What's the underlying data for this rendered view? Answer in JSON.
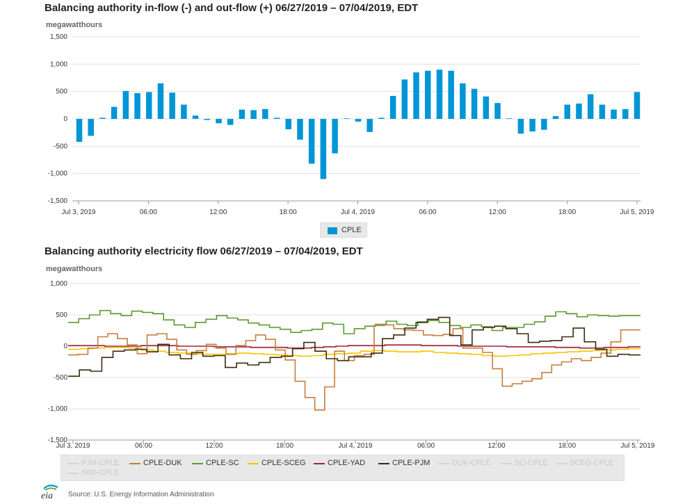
{
  "charts": {
    "top": {
      "title": "Balancing authority in-flow (-) and out-flow (+) 06/27/2019 – 07/04/2019, EDT",
      "unit": "megawatthours"
    },
    "bottom": {
      "title": "Balancing authority electricity flow 06/27/2019 – 07/04/2019, EDT",
      "unit": "megawatthours"
    }
  },
  "legend_top": {
    "label": "CPLE",
    "color": "#0096d6"
  },
  "legend_bottom": [
    {
      "label": "PJM-CPLE",
      "active": false
    },
    {
      "label": "CPLE-DUK",
      "active": true,
      "color": "#c87d3a"
    },
    {
      "label": "CPLE-SC",
      "active": true,
      "color": "#5b9a2e"
    },
    {
      "label": "CPLE-SCEG",
      "active": true,
      "color": "#f5c400"
    },
    {
      "label": "CPLE-YAD",
      "active": true,
      "color": "#a0243a"
    },
    {
      "label": "CPLE-PJM",
      "active": true,
      "color": "#3b2a0c"
    },
    {
      "label": "DUK-CPLE",
      "active": false
    },
    {
      "label": "SC-CPLE",
      "active": false
    },
    {
      "label": "SCEG-CPLE",
      "active": false
    },
    {
      "label": "YAD-CPLE",
      "active": false
    }
  ],
  "source": "Source: U.S. Energy Information Administration",
  "logo_text": "eia",
  "chart_data": [
    {
      "type": "bar",
      "title": "Balancing authority in-flow (-) and out-flow (+) 06/27/2019 – 07/04/2019, EDT",
      "ylabel": "megawatthours",
      "ylim": [
        -1500,
        1500
      ],
      "yticks": [
        "1,500",
        "1,000",
        "500",
        "0",
        "-500",
        "-1,000",
        "-1,500"
      ],
      "xticks": [
        "Jul 3, 2019",
        "06:00",
        "12:00",
        "18:00",
        "Jul 4, 2019",
        "06:00",
        "12:00",
        "18:00",
        "Jul 5, 2019"
      ],
      "series": [
        {
          "name": "CPLE",
          "values": [
            -420,
            -310,
            20,
            220,
            510,
            470,
            490,
            650,
            480,
            260,
            60,
            -20,
            -80,
            -110,
            170,
            160,
            180,
            20,
            -190,
            -380,
            -820,
            -1100,
            -630,
            10,
            -50,
            -240,
            20,
            420,
            720,
            850,
            880,
            900,
            880,
            650,
            550,
            410,
            290,
            10,
            -270,
            -230,
            -200,
            50,
            260,
            280,
            450,
            260,
            170,
            180,
            490
          ]
        }
      ]
    },
    {
      "type": "line",
      "title": "Balancing authority electricity flow 06/27/2019 – 07/04/2019, EDT",
      "ylabel": "megawatthours",
      "ylim": [
        -1500,
        1000
      ],
      "yticks": [
        "1,000",
        "500",
        "0",
        "-500",
        "-1,000",
        "-1,500"
      ],
      "xticks": [
        "Jul 3, 2019",
        "06:00",
        "12:00",
        "18:00",
        "Jul 4, 2019",
        "06:00",
        "12:00",
        "18:00",
        "Jul 5, 2019"
      ],
      "series": [
        {
          "name": "CPLE-DUK",
          "values": [
            -140,
            -130,
            -30,
            150,
            200,
            120,
            20,
            -120,
            180,
            200,
            110,
            -60,
            -130,
            -70,
            30,
            -30,
            -130,
            10,
            90,
            180,
            110,
            -60,
            -220,
            -560,
            -820,
            -1020,
            -650,
            -80,
            -230,
            -150,
            -130,
            330,
            340,
            280,
            260,
            250,
            180,
            170,
            190,
            280,
            -30,
            -30,
            -100,
            -360,
            -640,
            -600,
            -560,
            -520,
            -420,
            -300,
            -250,
            -200,
            -230,
            -180,
            -110,
            70,
            260,
            260
          ]
        },
        {
          "name": "CPLE-SC",
          "values": [
            380,
            440,
            500,
            570,
            520,
            490,
            560,
            540,
            520,
            420,
            340,
            300,
            380,
            430,
            490,
            450,
            420,
            370,
            340,
            300,
            270,
            220,
            250,
            270,
            370,
            350,
            200,
            280,
            320,
            350,
            400,
            350,
            330,
            390,
            410,
            380,
            330,
            300,
            340,
            310,
            250,
            300,
            300,
            350,
            390,
            480,
            550,
            520,
            470,
            500,
            490,
            480,
            490,
            490
          ]
        },
        {
          "name": "CPLE-SCEG",
          "values": [
            -50,
            -40,
            -30,
            -20,
            -20,
            -30,
            -60,
            -80,
            -100,
            -110,
            -120,
            -130,
            -130,
            -120,
            -110,
            -120,
            -130,
            -140,
            -150,
            -160,
            -150,
            -130,
            -120,
            -110,
            -80,
            -70,
            -80,
            -90,
            -90,
            -80,
            -100,
            -110,
            -120,
            -130,
            -150,
            -160,
            -150,
            -140,
            -120,
            -110,
            -100,
            -90,
            -80,
            -70,
            -60,
            -50,
            -40
          ]
        },
        {
          "name": "CPLE-YAD",
          "values": [
            10,
            10,
            10,
            0,
            0,
            0,
            10,
            10,
            10,
            0,
            0,
            0,
            -10,
            -10,
            -10,
            -20,
            -20,
            -20,
            -30,
            -30,
            -20,
            -10,
            0,
            10,
            10,
            10,
            20,
            20,
            20,
            10,
            10,
            10,
            0,
            0,
            0,
            0,
            -10,
            -10,
            -10,
            -10,
            -20,
            -20,
            -30,
            -30,
            -20,
            -20,
            -10
          ]
        },
        {
          "name": "CPLE-PJM",
          "values": [
            -480,
            -380,
            -400,
            -180,
            -80,
            -60,
            -50,
            -90,
            30,
            -140,
            -200,
            -100,
            -160,
            -150,
            -340,
            -270,
            -300,
            -260,
            -180,
            -160,
            -40,
            60,
            -80,
            -200,
            -230,
            -170,
            -170,
            -110,
            120,
            180,
            290,
            380,
            430,
            460,
            170,
            20,
            260,
            300,
            320,
            280,
            200,
            60,
            80,
            90,
            150,
            290,
            70,
            -50,
            -160,
            -130,
            -140
          ]
        }
      ]
    }
  ]
}
